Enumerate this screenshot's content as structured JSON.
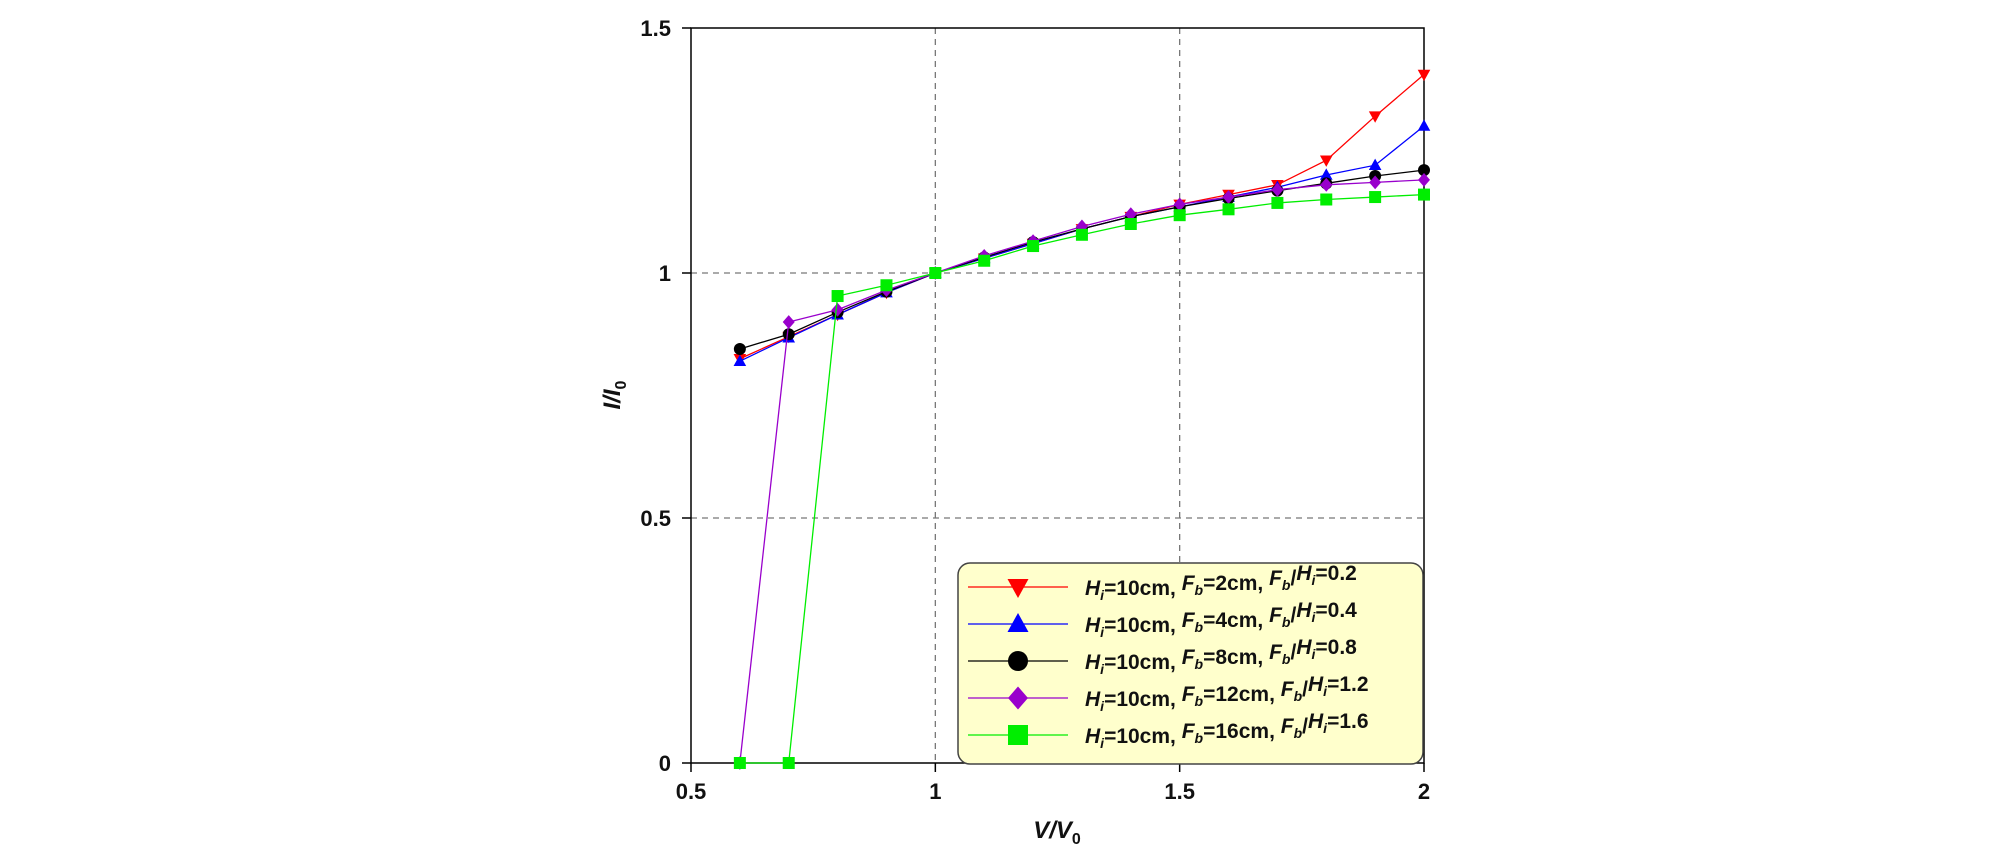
{
  "chart_data": {
    "type": "line",
    "title": "",
    "xlabel": {
      "base": "V",
      "slash": "/",
      "base2": "V",
      "sub2": "0"
    },
    "ylabel": {
      "base": "I",
      "slash": "/",
      "base2": "I",
      "sub2": "0"
    },
    "xlim": [
      0.5,
      2
    ],
    "ylim": [
      0,
      1.5
    ],
    "xticks": [
      "0.5",
      "1",
      "1.5",
      "2"
    ],
    "yticks": [
      "0",
      "0.5",
      "1",
      "1.5"
    ],
    "grid": {
      "x": [
        1,
        1.5
      ],
      "y": [
        0.5,
        1
      ]
    },
    "legend_placement": "bottom-right",
    "legend_background": "#ffffcc",
    "series": [
      {
        "name": "Hi=10cm, Fb=2cm, Fb/Hi=0.2",
        "name_parts": [
          "H",
          "i",
          "=10cm, ",
          "F",
          "b",
          "=2cm, ",
          "F",
          "b",
          "/",
          "H",
          "i",
          "=0.2"
        ],
        "color": "#ff0000",
        "marker": "triangle-down",
        "x": [
          0.6,
          0.7,
          0.8,
          0.9,
          1.0,
          1.1,
          1.2,
          1.3,
          1.4,
          1.5,
          1.6,
          1.7,
          1.8,
          1.9,
          2.0
        ],
        "y": [
          0.825,
          0.87,
          0.915,
          0.96,
          1.0,
          1.03,
          1.06,
          1.09,
          1.115,
          1.14,
          1.16,
          1.18,
          1.23,
          1.32,
          1.405
        ]
      },
      {
        "name": "Hi=10cm, Fb=4cm, Fb/Hi=0.4",
        "name_parts": [
          "H",
          "i",
          "=10cm, ",
          "F",
          "b",
          "=4cm, ",
          "F",
          "b",
          "/",
          "H",
          "i",
          "=0.4"
        ],
        "color": "#0000ff",
        "marker": "triangle-up",
        "x": [
          0.6,
          0.7,
          0.8,
          0.9,
          1.0,
          1.1,
          1.2,
          1.3,
          1.4,
          1.5,
          1.6,
          1.7,
          1.8,
          1.9,
          2.0
        ],
        "y": [
          0.82,
          0.868,
          0.915,
          0.96,
          1.0,
          1.03,
          1.06,
          1.09,
          1.115,
          1.135,
          1.155,
          1.175,
          1.2,
          1.22,
          1.3
        ]
      },
      {
        "name": "Hi=10cm, Fb=8cm, Fb/Hi=0.8",
        "name_parts": [
          "H",
          "i",
          "=10cm, ",
          "F",
          "b",
          "=8cm, ",
          "F",
          "b",
          "/",
          "H",
          "i",
          "=0.8"
        ],
        "color": "#000000",
        "marker": "circle",
        "x": [
          0.6,
          0.7,
          0.8,
          0.9,
          1.0,
          1.1,
          1.2,
          1.3,
          1.4,
          1.5,
          1.6,
          1.7,
          1.8,
          1.9,
          2.0
        ],
        "y": [
          0.845,
          0.875,
          0.92,
          0.962,
          1.0,
          1.032,
          1.063,
          1.09,
          1.115,
          1.135,
          1.152,
          1.168,
          1.183,
          1.198,
          1.21
        ]
      },
      {
        "name": "Hi=10cm, Fb=12cm, Fb/Hi=1.2",
        "name_parts": [
          "H",
          "i",
          "=10cm, ",
          "F",
          "b",
          "=12cm, ",
          "F",
          "b",
          "/",
          "H",
          "i",
          "=1.2"
        ],
        "color": "#9900cc",
        "marker": "diamond",
        "x": [
          0.6,
          0.7,
          0.8,
          0.9,
          1.0,
          1.1,
          1.2,
          1.3,
          1.4,
          1.5,
          1.6,
          1.7,
          1.8,
          1.9,
          2.0
        ],
        "y": [
          0.0,
          0.9,
          0.925,
          0.965,
          1.0,
          1.035,
          1.065,
          1.095,
          1.12,
          1.14,
          1.155,
          1.17,
          1.18,
          1.185,
          1.19
        ]
      },
      {
        "name": "Hi=10cm, Fb=16cm, Fb/Hi=1.6",
        "name_parts": [
          "H",
          "i",
          "=10cm, ",
          "F",
          "b",
          "=16cm, ",
          "F",
          "b",
          "/",
          "H",
          "i",
          "=1.6"
        ],
        "color": "#00ee00",
        "marker": "square",
        "x": [
          0.6,
          0.7,
          0.8,
          0.9,
          1.0,
          1.1,
          1.2,
          1.3,
          1.4,
          1.5,
          1.6,
          1.7,
          1.8,
          1.9,
          2.0
        ],
        "y": [
          0.0,
          0.0,
          0.953,
          0.975,
          1.0,
          1.025,
          1.055,
          1.078,
          1.1,
          1.118,
          1.13,
          1.143,
          1.15,
          1.155,
          1.16
        ]
      }
    ]
  }
}
